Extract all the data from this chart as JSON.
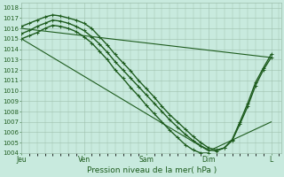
{
  "xlabel": "Pression niveau de la mer( hPa )",
  "ylim": [
    1004,
    1018.5
  ],
  "ytick_vals": [
    1004,
    1005,
    1006,
    1007,
    1008,
    1009,
    1010,
    1011,
    1012,
    1013,
    1014,
    1015,
    1016,
    1017,
    1018
  ],
  "day_labels": [
    "Jeu",
    "Ven",
    "Sam",
    "Dim",
    "L"
  ],
  "day_positions": [
    0,
    24,
    48,
    72,
    96
  ],
  "xlim": [
    0,
    100
  ],
  "bg_color": "#c8eade",
  "grid_color": "#9dbfad",
  "line_color": "#1e5c1e",
  "lines": [
    {
      "x": [
        0,
        96
      ],
      "y": [
        1016.0,
        1013.2
      ],
      "lw": 0.8,
      "marker": null
    },
    {
      "x": [
        0,
        72,
        96
      ],
      "y": [
        1015.0,
        1004.2,
        1007.0
      ],
      "lw": 0.8,
      "marker": null
    },
    {
      "x": [
        0,
        3,
        6,
        9,
        12,
        15,
        18,
        21,
        24,
        27,
        30,
        33,
        36,
        39,
        42,
        45,
        48,
        51,
        54,
        57,
        60,
        63,
        66,
        69,
        72,
        75,
        78,
        81,
        84,
        87,
        90,
        93,
        96
      ],
      "y": [
        1016.2,
        1016.5,
        1016.8,
        1017.1,
        1017.3,
        1017.2,
        1017.0,
        1016.8,
        1016.5,
        1016.0,
        1015.2,
        1014.4,
        1013.5,
        1012.7,
        1011.9,
        1011.0,
        1010.2,
        1009.4,
        1008.5,
        1007.7,
        1007.0,
        1006.3,
        1005.6,
        1005.0,
        1004.5,
        1004.3,
        1004.5,
        1005.2,
        1006.8,
        1008.5,
        1010.5,
        1012.0,
        1013.2
      ],
      "lw": 1.0,
      "marker": "+"
    },
    {
      "x": [
        0,
        3,
        6,
        9,
        12,
        15,
        18,
        21,
        24,
        27,
        30,
        33,
        36,
        39,
        42,
        45,
        48,
        51,
        54,
        57,
        60,
        63,
        66,
        69,
        72,
        75,
        78,
        81,
        84,
        87,
        90,
        93,
        96
      ],
      "y": [
        1015.5,
        1015.8,
        1016.2,
        1016.5,
        1016.8,
        1016.7,
        1016.5,
        1016.2,
        1015.8,
        1015.2,
        1014.5,
        1013.7,
        1012.8,
        1012.0,
        1011.2,
        1010.4,
        1009.6,
        1008.8,
        1008.0,
        1007.2,
        1006.5,
        1005.8,
        1005.2,
        1004.7,
        1004.3,
        1004.2,
        1004.5,
        1005.3,
        1007.0,
        1008.8,
        1010.8,
        1012.2,
        1013.5
      ],
      "lw": 1.0,
      "marker": "+"
    },
    {
      "x": [
        0,
        3,
        6,
        9,
        12,
        15,
        18,
        21,
        24,
        27,
        30,
        33,
        36,
        39,
        42,
        45,
        48,
        51,
        54,
        57,
        60,
        63,
        66,
        69,
        72
      ],
      "y": [
        1015.0,
        1015.3,
        1015.6,
        1016.0,
        1016.3,
        1016.2,
        1016.0,
        1015.7,
        1015.2,
        1014.6,
        1013.8,
        1013.0,
        1012.0,
        1011.2,
        1010.3,
        1009.5,
        1008.6,
        1007.8,
        1007.0,
        1006.2,
        1005.5,
        1004.8,
        1004.3,
        1004.0,
        1004.0
      ],
      "lw": 1.0,
      "marker": "+"
    }
  ]
}
